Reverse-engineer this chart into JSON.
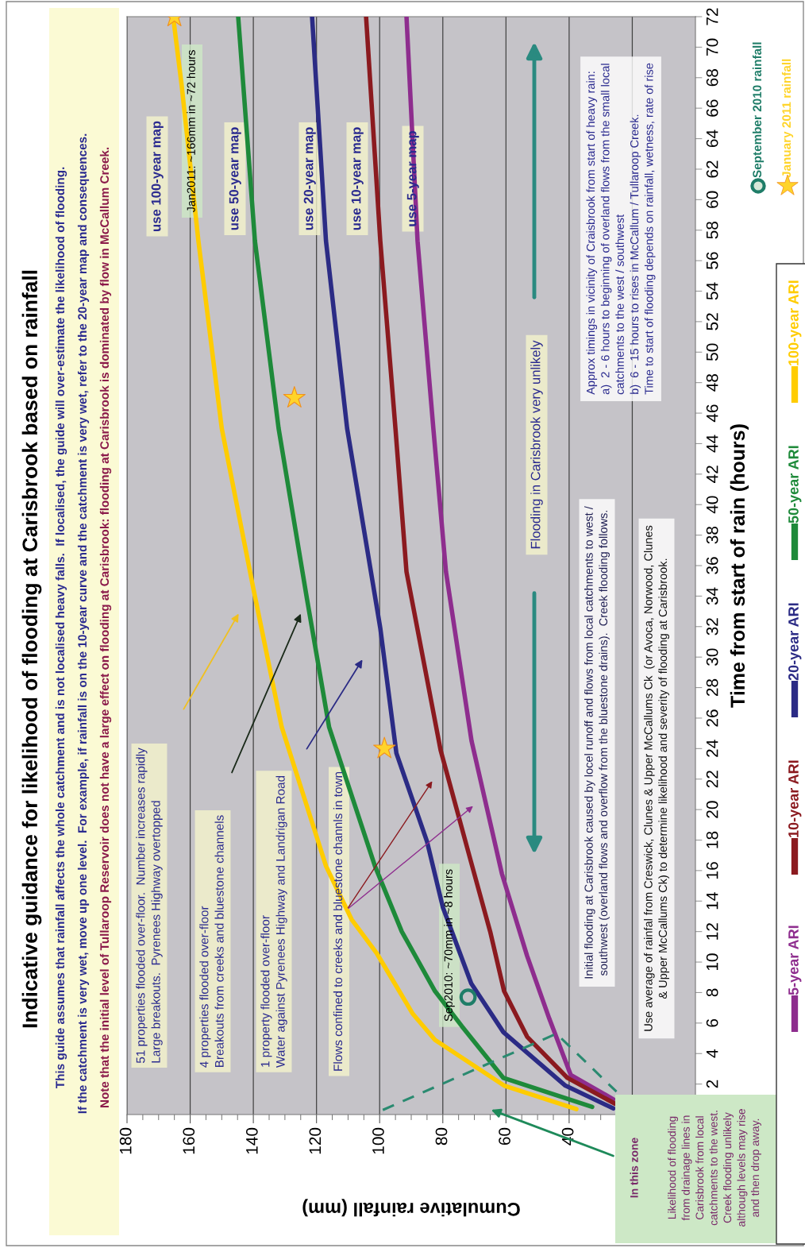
{
  "chart_data": {
    "type": "line",
    "title": "Indicative guidance for likelihood of flooding at Carisbrook based on rainfall",
    "xlabel": "Cumulative rainfall (mm)",
    "ylabel": "Time from start of rain (hours)",
    "xlim": [
      180,
      0
    ],
    "xticks": [
      {
        "value": 20,
        "label": null
      },
      40,
      60,
      80,
      100,
      120,
      140,
      160,
      180
    ],
    "ylim": [
      0,
      72
    ],
    "yticks": [
      2,
      4,
      6,
      8,
      10,
      12,
      14,
      16,
      18,
      20,
      22,
      24,
      26,
      28,
      30,
      32,
      34,
      36,
      38,
      40,
      42,
      44,
      46,
      48,
      50,
      52,
      54,
      56,
      58,
      60,
      62,
      64,
      66,
      68,
      70,
      72
    ],
    "grid": "x",
    "legend": "right",
    "line_style": "solid",
    "series": [
      {
        "name": "5-year ARI",
        "color": "#8e2d8e",
        "values": [
          1,
          2.6,
          6.3,
          10.4,
          15.8,
          24.5,
          35.6,
          45,
          57.3,
          72
        ],
        "x": [
          26,
          39.5,
          46.3,
          53.3,
          61.3,
          70.9,
          79,
          83,
          88,
          91.5
        ]
      },
      {
        "name": "10-year ARI",
        "color": "#8b1a1f",
        "values": [
          0.7,
          2.4,
          5.1,
          8.1,
          12,
          16.9,
          23.9,
          35.6,
          45,
          57.3,
          72
        ],
        "x": [
          25.4,
          40.5,
          53.3,
          60.6,
          65,
          71.5,
          80.7,
          91.5,
          95,
          99.8,
          104.3
        ]
      },
      {
        "name": "20-year ARI",
        "color": "#2b2b85",
        "values": [
          0.4,
          1.9,
          5.4,
          8.6,
          13.6,
          17.9,
          23.7,
          31.9,
          45,
          57.3,
          72
        ],
        "x": [
          26,
          41.2,
          60.8,
          71,
          80,
          85,
          94.7,
          99.8,
          110.3,
          117,
          121.4
        ]
      },
      {
        "name": "50-year ARI",
        "color": "#1e8a3a",
        "values": [
          0.5,
          2.4,
          5.8,
          8.1,
          12,
          16.3,
          25.4,
          33.8,
          45,
          57.3,
          72
        ],
        "x": [
          32.7,
          60.8,
          74,
          82.5,
          93,
          101.5,
          116,
          123,
          132,
          139.5,
          144.8
        ]
      },
      {
        "name": "100-year ARI",
        "color": "#ffcc00",
        "values": [
          0.36,
          1.9,
          4.9,
          6.6,
          10.6,
          12.8,
          16.3,
          25.4,
          34.5,
          45,
          57.3,
          67.5,
          72
        ],
        "x": [
          37.7,
          60.6,
          82.5,
          89.5,
          101,
          108.9,
          117,
          131,
          140,
          150,
          157.4,
          162.7,
          165.4
        ]
      },
      {
        "line_style": "dashed",
        "color": "#2a8a70",
        "values": [
          0.3,
          5.3,
          1.5
        ],
        "x": [
          99,
          44,
          25
        ]
      },
      {
        "name": "September 2010 rainfall",
        "type": "scatter",
        "marker": "circle",
        "color": "#1f7d68",
        "values": [
          7.7
        ],
        "x": [
          72
        ]
      },
      {
        "name": "January 2011 rainfall",
        "type": "scatter",
        "marker": "star",
        "color": "#ffd42a",
        "values": [
          24,
          47,
          72
        ],
        "x": [
          98.5,
          127,
          165
        ]
      }
    ],
    "annotations": [
      "This guide assumes that rainfall affects the whole catchment and is not localised heavy falls.  If localised, the guide will over-estimate the likelihood of flooding.",
      "If the catchment is very wet, move up one level.  For example, if rainfall is on the 10-year curve and the catchment is very wet, refer to the 20-year map and consequences.",
      "Note that the initial level of Tullaroop Reservoir does not have a large effect on flooding at Carisbrook: flooding at Carisbrook is dominated by flow in McCallum Creek.",
      "51 properties flooded over-floor.  Number increases rapidly\nLarge breakouts.  Pyrenees Highway overtopped",
      "4 properties flooded over-floor\nBreakouts from creeks and bluestone channels",
      "1 property flooded over-floor\nWater against Pyrenees Highway and Landrigan Road",
      "Flows confined to creeks and bluestone channls in town",
      "use 100-year map",
      "use 50-year map",
      "use 20-year map",
      "use 10-year map",
      "use 5-year map",
      "Jan2011: ~166mm in ~72 hours",
      "Sep2010: ~70mm in ~8 hours",
      "Flooding in Carisbrook very unlikely",
      "Approx timings in vicinity of Craisbrook from start of heavy rain:\na)  2 - 6 hours to beginning of overland flows from the small local\ncatchments to the west / southwest\nb)  6 - 15 hours to rises in McCallum / Tullaroop Creek.\nTime to start of flooding depends on rainfall, wetness, rate of rise",
      "Initial flooding at Carisbrook caused by locel runoff and flows from local catchments to west /\nsouthwest (overland flows and overflow from the bluestone drains).  Creek flooding follows.",
      "Use average of rainfal from Creswick, Clunes & Upper McCallums Ck  (or Avoca, Norwood, Clunes\n& Upper McCallums Ck) to determine likelihood and severity of flooding at Carisbrook.",
      "In this zone",
      "Likelihood of flooding\nfrom drainage lines in\nCarisbrook from local\ncatchments to the west.\nCreek flooding unlikely\nalthough levels may rise\nand then drop away."
    ]
  }
}
